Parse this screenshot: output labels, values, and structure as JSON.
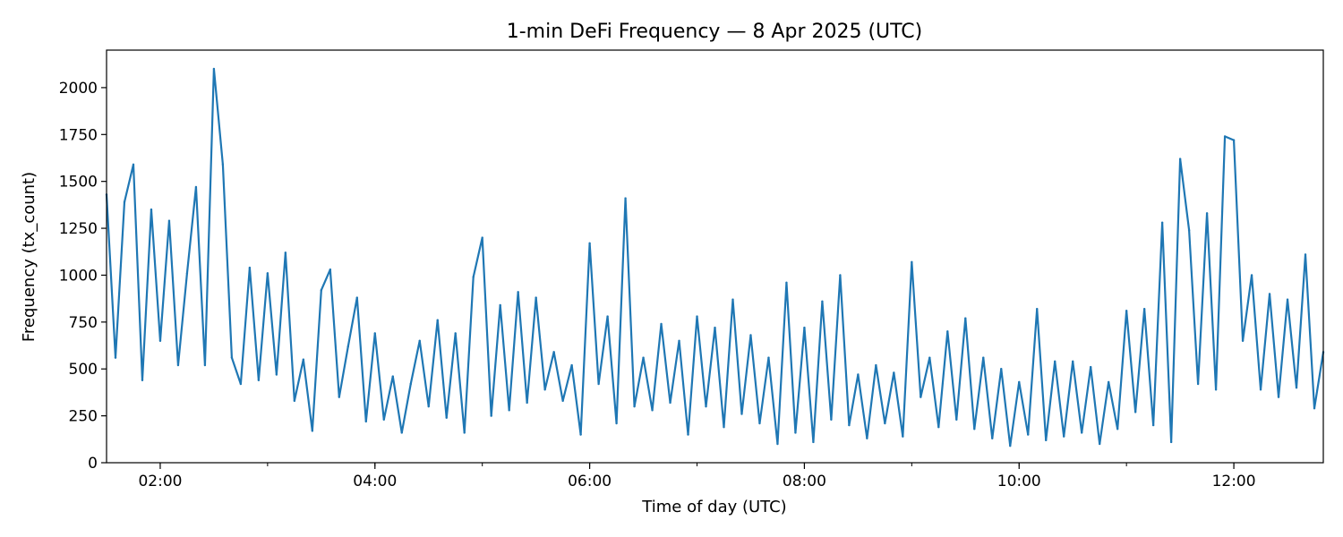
{
  "chart_data": {
    "type": "line",
    "title": "1-min DeFi Frequency — 8 Apr 2025 (UTC)",
    "xlabel": "Time of day (UTC)",
    "ylabel": "Frequency (tx_count)",
    "xlim": [
      "01:30",
      "12:50"
    ],
    "ylim": [
      0,
      2200
    ],
    "x_ticks": [
      "02:00",
      "04:00",
      "06:00",
      "08:00",
      "10:00",
      "12:00"
    ],
    "y_ticks": [
      0,
      250,
      500,
      750,
      1000,
      1250,
      1500,
      1750,
      2000
    ],
    "grid": false,
    "legend": "none",
    "series": [
      {
        "color": "#1f77b4",
        "x": [
          "01:30",
          "01:35",
          "01:40",
          "01:45",
          "01:50",
          "01:55",
          "02:00",
          "02:05",
          "02:10",
          "02:15",
          "02:20",
          "02:25",
          "02:30",
          "02:35",
          "02:40",
          "02:45",
          "02:50",
          "02:55",
          "03:00",
          "03:05",
          "03:10",
          "03:15",
          "03:20",
          "03:25",
          "03:30",
          "03:35",
          "03:40",
          "03:45",
          "03:50",
          "03:55",
          "04:00",
          "04:05",
          "04:10",
          "04:15",
          "04:20",
          "04:25",
          "04:30",
          "04:35",
          "04:40",
          "04:45",
          "04:50",
          "04:55",
          "05:00",
          "05:05",
          "05:10",
          "05:15",
          "05:20",
          "05:25",
          "05:30",
          "05:35",
          "05:40",
          "05:45",
          "05:50",
          "05:55",
          "06:00",
          "06:05",
          "06:10",
          "06:15",
          "06:20",
          "06:25",
          "06:30",
          "06:35",
          "06:40",
          "06:45",
          "06:50",
          "06:55",
          "07:00",
          "07:05",
          "07:10",
          "07:15",
          "07:20",
          "07:25",
          "07:30",
          "07:35",
          "07:40",
          "07:45",
          "07:50",
          "07:55",
          "08:00",
          "08:05",
          "08:10",
          "08:15",
          "08:20",
          "08:25",
          "08:30",
          "08:35",
          "08:40",
          "08:45",
          "08:50",
          "08:55",
          "09:00",
          "09:05",
          "09:10",
          "09:15",
          "09:20",
          "09:25",
          "09:30",
          "09:35",
          "09:40",
          "09:45",
          "09:50",
          "09:55",
          "10:00",
          "10:05",
          "10:10",
          "10:15",
          "10:20",
          "10:25",
          "10:30",
          "10:35",
          "10:40",
          "10:45",
          "10:50",
          "10:55",
          "11:00",
          "11:05",
          "11:10",
          "11:15",
          "11:20",
          "11:25",
          "11:30",
          "11:35",
          "11:40",
          "11:45",
          "11:50",
          "11:55",
          "12:00",
          "12:05",
          "12:10",
          "12:15",
          "12:20",
          "12:25",
          "12:30",
          "12:35",
          "12:40",
          "12:45",
          "12:50"
        ],
        "values": [
          1430,
          560,
          1390,
          1590,
          440,
          1350,
          650,
          1290,
          520,
          1010,
          1470,
          520,
          2100,
          1590,
          560,
          420,
          1040,
          440,
          1010,
          470,
          1120,
          330,
          550,
          170,
          920,
          1030,
          350,
          620,
          880,
          220,
          690,
          230,
          460,
          160,
          420,
          650,
          300,
          760,
          240,
          690,
          160,
          990,
          1200,
          250,
          840,
          280,
          910,
          320,
          880,
          390,
          590,
          330,
          520,
          150,
          1170,
          420,
          780,
          210,
          1410,
          300,
          560,
          280,
          740,
          320,
          650,
          150,
          780,
          300,
          720,
          190,
          870,
          260,
          680,
          210,
          560,
          100,
          960,
          160,
          720,
          110,
          860,
          230,
          1000,
          200,
          470,
          130,
          520,
          210,
          480,
          140,
          1070,
          350,
          560,
          190,
          700,
          230,
          770,
          180,
          560,
          130,
          500,
          90,
          430,
          150,
          820,
          120,
          540,
          140,
          540,
          160,
          510,
          100,
          430,
          180,
          810,
          270,
          820,
          200,
          1280,
          110,
          1620,
          1240,
          420,
          1330,
          390,
          1740,
          1720,
          650,
          1000,
          390,
          900,
          350,
          870,
          400,
          1110,
          290,
          590
        ]
      }
    ]
  }
}
